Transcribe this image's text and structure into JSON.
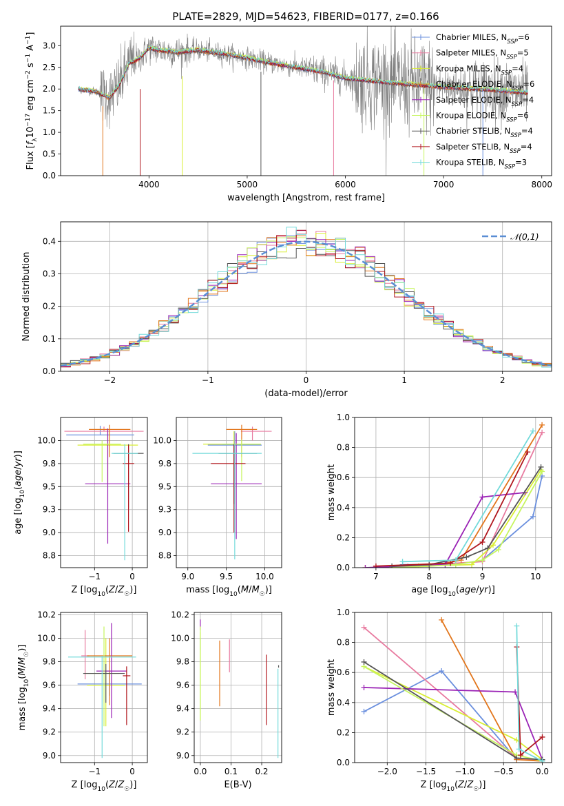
{
  "figure": {
    "title": "PLATE=2829, MJD=54623, FIBERID=0177, z=0.166"
  },
  "models": [
    {
      "name": "Chabrier MILES",
      "nssp": "6",
      "color": "#6a8fde"
    },
    {
      "name": "Salpeter MILES",
      "nssp": "5",
      "color": "#e87a9f"
    },
    {
      "name": "Kroupa MILES",
      "nssp": "4",
      "color": "#d9ee32"
    },
    {
      "name": "Chabrier ELODIE",
      "nssp": "6",
      "color": "#e2761c"
    },
    {
      "name": "Salpeter ELODIE",
      "nssp": "4",
      "color": "#9a22b5"
    },
    {
      "name": "Kroupa ELODIE",
      "nssp": "6",
      "color": "#c6f55e"
    },
    {
      "name": "Chabrier STELIB",
      "nssp": "4",
      "color": "#555555"
    },
    {
      "name": "Salpeter STELIB",
      "nssp": "4",
      "color": "#b0161d"
    },
    {
      "name": "Kroupa STELIB",
      "nssp": "3",
      "color": "#72dada"
    }
  ],
  "chart_data": [
    {
      "id": "spectrum",
      "type": "line",
      "xlabel": "wavelength [Angstrom, rest frame]",
      "ylabel": "Flux [f_λ 10^-17 erg cm^-2 s^-1 A^-1]",
      "xlim": [
        3100,
        8100
      ],
      "ylim": [
        0,
        3.45
      ],
      "xticks": [
        4000,
        5000,
        6000,
        7000,
        8000
      ],
      "yticks": [
        0.0,
        0.5,
        1.0,
        1.5,
        2.0,
        2.5,
        3.0
      ],
      "grid": false,
      "legend": "top-right",
      "data_color": "#808080",
      "continuum_knots": [
        [
          3280,
          2.0
        ],
        [
          3450,
          1.95
        ],
        [
          3600,
          1.8
        ],
        [
          3700,
          2.1
        ],
        [
          3800,
          2.6
        ],
        [
          3900,
          2.7
        ],
        [
          4000,
          2.95
        ],
        [
          4100,
          2.9
        ],
        [
          4300,
          2.85
        ],
        [
          4500,
          2.9
        ],
        [
          4800,
          2.8
        ],
        [
          5000,
          2.72
        ],
        [
          5200,
          2.62
        ],
        [
          5500,
          2.5
        ],
        [
          5800,
          2.38
        ],
        [
          6000,
          2.25
        ],
        [
          6300,
          2.18
        ],
        [
          6600,
          2.12
        ],
        [
          7000,
          2.05
        ],
        [
          7500,
          1.98
        ],
        [
          7850,
          1.92
        ]
      ],
      "absorption_lines": [
        [
          3530,
          0.35,
          1.6
        ],
        [
          3910,
          0.55,
          2.0
        ],
        [
          4340,
          0.4,
          2.3
        ],
        [
          5140,
          0.6,
          2.4
        ],
        [
          5880,
          0.3,
          2.2
        ],
        [
          6800,
          0.4,
          2.0
        ],
        [
          7400,
          0.2,
          2.0
        ]
      ]
    },
    {
      "id": "residuals",
      "type": "histogram",
      "xlabel": "(data-model)/error",
      "ylabel": "Normed distribution",
      "xlim": [
        -2.5,
        2.5
      ],
      "ylim": [
        0,
        0.46
      ],
      "xticks": [
        -2,
        -1,
        0,
        1,
        2
      ],
      "yticks": [
        0.0,
        0.1,
        0.2,
        0.3,
        0.4
      ],
      "grid": true,
      "legend": "top-right",
      "reference_label": "𝒩(0,1)",
      "reference_color": "#5a8ed4",
      "bin_width": 0.1
    },
    {
      "id": "age-vs-Z",
      "type": "scatter",
      "xlabel": "Z [log10(Z/Z☉)]",
      "ylabel": "age  [log10(age/yr)]",
      "xlim": [
        -1.9,
        0.4
      ],
      "ylim": [
        8.62,
        10.25
      ],
      "xticks": [
        -1,
        0
      ],
      "yticks": [
        8.75,
        9.0,
        9.25,
        9.5,
        9.75,
        10.0
      ],
      "grid": true,
      "errorbars": [
        {
          "model": 0,
          "x": -0.85,
          "xerr": [
            0.9,
            0.9
          ],
          "y": 10.06,
          "yerr": [
            0.0,
            0.1
          ]
        },
        {
          "model": 1,
          "x": -0.75,
          "xerr": [
            1.05,
            1.05
          ],
          "y": 10.1,
          "yerr": [
            0.0,
            0.05
          ]
        },
        {
          "model": 2,
          "x": -0.65,
          "xerr": [
            0.8,
            0.8
          ],
          "y": 9.95,
          "yerr": [
            0.4,
            0.15
          ]
        },
        {
          "model": 3,
          "x": -0.6,
          "xerr": [
            0.55,
            0.55
          ],
          "y": 10.12,
          "yerr": [
            0.3,
            0.05
          ]
        },
        {
          "model": 4,
          "x": -0.65,
          "xerr": [
            0.6,
            0.6
          ],
          "y": 9.53,
          "yerr": [
            0.65,
            0.6
          ]
        },
        {
          "model": 5,
          "x": -0.8,
          "xerr": [
            0.5,
            0.5
          ],
          "y": 9.96,
          "yerr": [
            0.41,
            0.04
          ]
        },
        {
          "model": 6,
          "x": -0.1,
          "xerr": [
            0.4,
            0.4
          ],
          "y": 9.86,
          "yerr": [
            0.6,
            0.1
          ]
        },
        {
          "model": 7,
          "x": -0.1,
          "xerr": [
            0.15,
            0.15
          ],
          "y": 9.75,
          "yerr": [
            0.74,
            0.2
          ]
        },
        {
          "model": 8,
          "x": -0.2,
          "xerr": [
            0.35,
            0.35
          ],
          "y": 9.86,
          "yerr": [
            1.16,
            0.1
          ]
        }
      ]
    },
    {
      "id": "age-vs-mass",
      "type": "scatter",
      "xlabel": "mass [log10(M/M☉)]",
      "ylabel": "",
      "xlim": [
        8.85,
        10.22
      ],
      "ylim": [
        8.62,
        10.25
      ],
      "xticks": [
        9.0,
        9.5,
        10.0
      ],
      "yticks": [
        8.75,
        9.0,
        9.25,
        9.5,
        9.75,
        10.0
      ],
      "grid": true,
      "errorbars": [
        {
          "model": 0,
          "x": 9.61,
          "xerr": [
            0.35,
            0.35
          ],
          "y": 9.95,
          "yerr": [
            0.38,
            0.15
          ]
        },
        {
          "model": 1,
          "x": 9.84,
          "xerr": [
            0.15,
            0.25
          ],
          "y": 10.1,
          "yerr": [
            0.1,
            0.05
          ]
        },
        {
          "model": 2,
          "x": 9.6,
          "xerr": [
            0.4,
            0.35
          ],
          "y": 9.96,
          "yerr": [
            0.4,
            0.14
          ]
        },
        {
          "model": 3,
          "x": 9.7,
          "xerr": [
            0.2,
            0.2
          ],
          "y": 10.12,
          "yerr": [
            0.3,
            0.05
          ]
        },
        {
          "model": 4,
          "x": 9.63,
          "xerr": [
            0.33,
            0.33
          ],
          "y": 9.53,
          "yerr": [
            0.6,
            0.55
          ]
        },
        {
          "model": 5,
          "x": 9.7,
          "xerr": [
            0.25,
            0.25
          ],
          "y": 9.96,
          "yerr": [
            0.4,
            0.05
          ]
        },
        {
          "model": 6,
          "x": 9.6,
          "xerr": [
            0.2,
            0.3
          ],
          "y": 9.86,
          "yerr": [
            0.55,
            0.1
          ]
        },
        {
          "model": 7,
          "x": 9.6,
          "xerr": [
            0.3,
            0.15
          ],
          "y": 9.75,
          "yerr": [
            0.75,
            0.2
          ]
        },
        {
          "model": 8,
          "x": 9.61,
          "xerr": [
            0.55,
            0.35
          ],
          "y": 9.86,
          "yerr": [
            1.15,
            0.1
          ]
        }
      ]
    },
    {
      "id": "massweight-vs-age",
      "type": "line",
      "xlabel": "age  [log10(age/yr)]",
      "ylabel": "mass weight",
      "xlim": [
        6.6,
        10.3
      ],
      "ylim": [
        0,
        1.0
      ],
      "xticks": [
        7,
        8,
        9,
        10
      ],
      "yticks": [
        0.0,
        0.2,
        0.4,
        0.6,
        0.8,
        1.0
      ],
      "grid": true,
      "series": [
        {
          "model": 0,
          "points": [
            [
              7.5,
              0.02
            ],
            [
              8.0,
              0.02
            ],
            [
              8.5,
              0.02
            ],
            [
              9.0,
              0.05
            ],
            [
              9.95,
              0.34
            ],
            [
              10.12,
              0.61
            ]
          ]
        },
        {
          "model": 1,
          "points": [
            [
              7.6,
              0.01
            ],
            [
              8.5,
              0.03
            ],
            [
              9.0,
              0.04
            ],
            [
              10.12,
              0.9
            ]
          ]
        },
        {
          "model": 2,
          "points": [
            [
              7.8,
              0.01
            ],
            [
              8.8,
              0.02
            ],
            [
              9.2,
              0.15
            ],
            [
              10.1,
              0.65
            ]
          ]
        },
        {
          "model": 3,
          "points": [
            [
              6.8,
              0.0
            ],
            [
              8.0,
              0.01
            ],
            [
              8.6,
              0.05
            ],
            [
              10.12,
              0.95
            ]
          ]
        },
        {
          "model": 4,
          "points": [
            [
              6.8,
              0.0
            ],
            [
              8.3,
              0.02
            ],
            [
              9.0,
              0.47
            ],
            [
              9.8,
              0.5
            ]
          ]
        },
        {
          "model": 5,
          "points": [
            [
              7.3,
              0.0
            ],
            [
              8.0,
              0.01
            ],
            [
              8.5,
              0.02
            ],
            [
              9.0,
              0.05
            ],
            [
              9.3,
              0.12
            ],
            [
              10.12,
              0.64
            ]
          ]
        },
        {
          "model": 6,
          "points": [
            [
              7.3,
              0.01
            ],
            [
              8.0,
              0.02
            ],
            [
              8.7,
              0.07
            ],
            [
              9.1,
              0.13
            ],
            [
              10.1,
              0.67
            ]
          ]
        },
        {
          "model": 7,
          "points": [
            [
              7.0,
              0.01
            ],
            [
              8.4,
              0.03
            ],
            [
              9.0,
              0.17
            ],
            [
              9.85,
              0.77
            ]
          ]
        },
        {
          "model": 8,
          "points": [
            [
              7.5,
              0.04
            ],
            [
              8.5,
              0.05
            ],
            [
              9.95,
              0.91
            ]
          ]
        }
      ]
    },
    {
      "id": "mass-vs-Z",
      "type": "scatter",
      "xlabel": "Z [log10(Z/Z☉)]",
      "ylabel": "mass [log10(M/M☉)]",
      "xlim": [
        -1.9,
        0.4
      ],
      "ylim": [
        8.94,
        10.22
      ],
      "xticks": [
        -1,
        0
      ],
      "yticks": [
        9.0,
        9.2,
        9.4,
        9.6,
        9.8,
        10.0,
        10.2
      ],
      "grid": true,
      "errorbars": [
        {
          "model": 0,
          "x": -0.6,
          "xerr": [
            0.85,
            0.85
          ],
          "y": 9.61,
          "yerr": [
            0.1,
            0.1
          ]
        },
        {
          "model": 1,
          "x": -1.25,
          "xerr": [
            0.1,
            0.1
          ],
          "y": 9.85,
          "yerr": [
            0.2,
            0.22
          ]
        },
        {
          "model": 2,
          "x": -0.7,
          "xerr": [
            0.5,
            0.5
          ],
          "y": 9.6,
          "yerr": [
            0.35,
            0.4
          ]
        },
        {
          "model": 3,
          "x": -0.6,
          "xerr": [
            0.6,
            0.6
          ],
          "y": 9.85,
          "yerr": [
            0.42,
            0.15
          ]
        },
        {
          "model": 4,
          "x": -0.55,
          "xerr": [
            0.4,
            0.4
          ],
          "y": 9.72,
          "yerr": [
            0.4,
            0.41
          ]
        },
        {
          "model": 5,
          "x": -0.75,
          "xerr": [
            0.5,
            0.4
          ],
          "y": 9.7,
          "yerr": [
            0.45,
            0.4
          ]
        },
        {
          "model": 6,
          "x": -0.7,
          "xerr": [
            0.6,
            0.5
          ],
          "y": 9.7,
          "yerr": [
            0.25,
            0.08
          ]
        },
        {
          "model": 7,
          "x": -0.15,
          "xerr": [
            0.1,
            0.1
          ],
          "y": 9.68,
          "yerr": [
            0.42,
            0.08
          ]
        },
        {
          "model": 8,
          "x": -0.8,
          "xerr": [
            0.9,
            0.9
          ],
          "y": 9.84,
          "yerr": [
            0.86,
            0.01
          ]
        }
      ]
    },
    {
      "id": "mass-vs-ebv",
      "type": "scatter",
      "xlabel": "E(B-V)",
      "ylabel": "",
      "xlim": [
        -0.02,
        0.265
      ],
      "ylim": [
        8.94,
        10.22
      ],
      "xticks": [
        0.0,
        0.1,
        0.2
      ],
      "yticks": [
        9.0,
        9.2,
        9.4,
        9.6,
        9.8,
        10.0,
        10.2
      ],
      "grid": true,
      "errorbars": [
        {
          "model": 0,
          "x": 0.0,
          "y": 9.95,
          "yerr": [
            0.05,
            0.05
          ]
        },
        {
          "model": 1,
          "x": 0.095,
          "y": 9.85,
          "yerr": [
            0.14,
            0.14
          ]
        },
        {
          "model": 2,
          "x": 0.0,
          "y": 9.65,
          "yerr": [
            0.35,
            0.4
          ]
        },
        {
          "model": 3,
          "x": 0.063,
          "y": 9.7,
          "yerr": [
            0.28,
            0.28
          ]
        },
        {
          "model": 4,
          "x": 0.0,
          "y": 10.1,
          "yerr": [
            0.03,
            0.06
          ]
        },
        {
          "model": 5,
          "x": 0.0,
          "y": 9.7,
          "yerr": [
            0.4,
            0.4
          ]
        },
        {
          "model": 6,
          "x": 0.255,
          "y": 9.76,
          "yerr": [
            0.01,
            0.01
          ]
        },
        {
          "model": 7,
          "x": 0.215,
          "y": 9.56,
          "yerr": [
            0.3,
            0.3
          ]
        },
        {
          "model": 8,
          "x": 0.253,
          "y": 9.36,
          "yerr": [
            0.38,
            0.38
          ]
        }
      ]
    },
    {
      "id": "massweight-vs-Z",
      "type": "line",
      "xlabel": "Z [log10(Z/Z☉)]",
      "ylabel": "mass weight",
      "xlim": [
        -2.42,
        0.12
      ],
      "ylim": [
        0,
        1.0
      ],
      "xticks": [
        -2.0,
        -1.5,
        -1.0,
        -0.5,
        0.0
      ],
      "yticks": [
        0.0,
        0.2,
        0.4,
        0.6,
        0.8,
        1.0
      ],
      "grid": true,
      "series": [
        {
          "model": 0,
          "points": [
            [
              -2.3,
              0.34
            ],
            [
              -1.3,
              0.61
            ],
            [
              -0.33,
              0.02
            ],
            [
              0.0,
              0.02
            ]
          ]
        },
        {
          "model": 1,
          "points": [
            [
              -2.3,
              0.9
            ],
            [
              -0.33,
              0.03
            ],
            [
              0.0,
              0.01
            ]
          ]
        },
        {
          "model": 2,
          "points": [
            [
              -2.3,
              0.64
            ],
            [
              -0.33,
              0.15
            ],
            [
              0.0,
              0.02
            ]
          ]
        },
        {
          "model": 3,
          "points": [
            [
              -1.3,
              0.95
            ],
            [
              -0.33,
              0.02
            ],
            [
              0.0,
              0.01
            ]
          ]
        },
        {
          "model": 4,
          "points": [
            [
              -2.3,
              0.5
            ],
            [
              -0.35,
              0.47
            ],
            [
              0.0,
              0.02
            ]
          ]
        },
        {
          "model": 5,
          "points": [
            [
              -2.3,
              0.64
            ],
            [
              -0.33,
              0.05
            ],
            [
              0.0,
              0.01
            ]
          ]
        },
        {
          "model": 6,
          "points": [
            [
              -2.3,
              0.67
            ],
            [
              -0.33,
              0.03
            ],
            [
              0.0,
              0.02
            ]
          ]
        },
        {
          "model": 7,
          "points": [
            [
              -0.33,
              0.77
            ],
            [
              -0.28,
              0.05
            ],
            [
              0.0,
              0.17
            ]
          ]
        },
        {
          "model": 8,
          "points": [
            [
              -0.33,
              0.91
            ],
            [
              -0.3,
              0.09
            ],
            [
              0.0,
              0.01
            ]
          ]
        }
      ]
    }
  ]
}
